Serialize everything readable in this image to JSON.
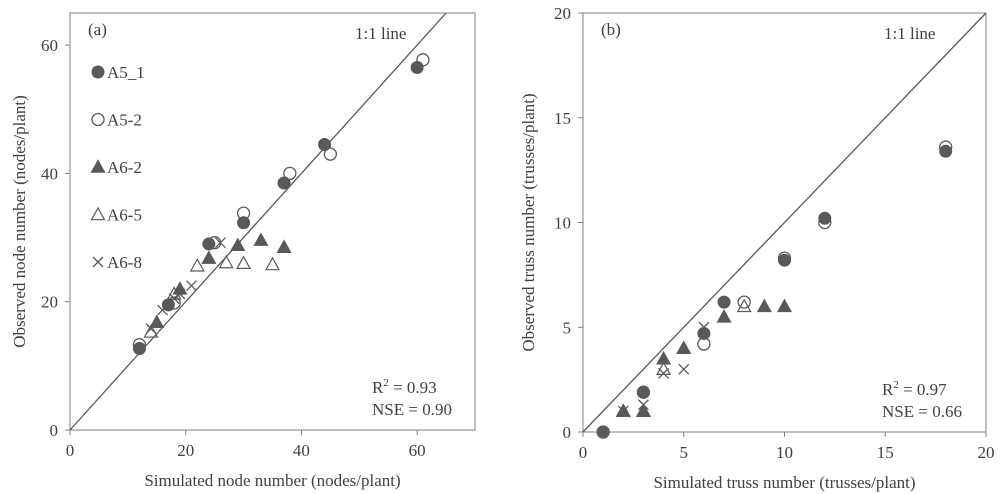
{
  "chart_data": [
    {
      "type": "scatter",
      "panel_label": "(a)",
      "xlabel": "Simulated node number (nodes/plant)",
      "ylabel": "Observed node number (nodes/plant)",
      "xlim": [
        0,
        70
      ],
      "ylim": [
        0,
        65
      ],
      "xticks": [
        "0",
        "20",
        "40",
        "60"
      ],
      "yticks": [
        "0",
        "20",
        "40",
        "60"
      ],
      "xtick_values": [
        0,
        20,
        40,
        60
      ],
      "ytick_values": [
        0,
        20,
        40,
        60
      ],
      "line_label": "1:1 line",
      "r2_prefix": "R",
      "r2_exp": "2",
      "r2_value": " = 0.93",
      "nse": "NSE = 0.90",
      "legend_position": "left",
      "series": [
        {
          "name": "A5_1",
          "marker": "filled-circle",
          "color": "#595959",
          "points": [
            [
              12,
              12.7
            ],
            [
              17,
              19.5
            ],
            [
              24,
              29
            ],
            [
              30,
              32.3
            ],
            [
              37,
              38.5
            ],
            [
              44,
              44.5
            ],
            [
              60,
              56.5
            ]
          ]
        },
        {
          "name": "A5-2",
          "marker": "open-circle",
          "color": "#595959",
          "points": [
            [
              12,
              13.3
            ],
            [
              18,
              19.8
            ],
            [
              25,
              29.2
            ],
            [
              30,
              33.8
            ],
            [
              38,
              40
            ],
            [
              45,
              43
            ],
            [
              61,
              57.7
            ]
          ]
        },
        {
          "name": "A6-2",
          "marker": "filled-triangle",
          "color": "#595959",
          "points": [
            [
              15,
              16.8
            ],
            [
              19,
              22
            ],
            [
              24,
              26.8
            ],
            [
              29,
              28.8
            ],
            [
              33,
              29.6
            ],
            [
              37,
              28.5
            ]
          ]
        },
        {
          "name": "A6-5",
          "marker": "open-triangle",
          "color": "#595959",
          "points": [
            [
              14,
              15.3
            ],
            [
              18,
              21.2
            ],
            [
              22,
              25.6
            ],
            [
              27,
              26.1
            ],
            [
              30,
              26
            ],
            [
              35,
              25.8
            ]
          ]
        },
        {
          "name": "A6-8",
          "marker": "cross",
          "color": "#595959",
          "points": [
            [
              14,
              15.8
            ],
            [
              16,
              18.7
            ],
            [
              18,
              20.5
            ],
            [
              19,
              21.2
            ],
            [
              21,
              22.5
            ],
            [
              26,
              29.2
            ]
          ]
        }
      ]
    },
    {
      "type": "scatter",
      "panel_label": "(b)",
      "xlabel": "Simulated truss number (trusses/plant)",
      "ylabel": "Observed truss number (trusses/plant)",
      "xlim": [
        0,
        20
      ],
      "ylim": [
        0,
        20
      ],
      "xticks": [
        "0",
        "5",
        "10",
        "15",
        "20"
      ],
      "yticks": [
        "0",
        "5",
        "10",
        "15",
        "20"
      ],
      "xtick_values": [
        0,
        5,
        10,
        15,
        20
      ],
      "ytick_values": [
        0,
        5,
        10,
        15,
        20
      ],
      "line_label": "1:1 line",
      "r2_prefix": "R",
      "r2_exp": "2",
      "r2_value": " = 0.97",
      "nse": "NSE = 0.66",
      "series": [
        {
          "name": "A5_1",
          "marker": "filled-circle",
          "color": "#595959",
          "points": [
            [
              1,
              0
            ],
            [
              3,
              1.9
            ],
            [
              6,
              4.7
            ],
            [
              7,
              6.2
            ],
            [
              10,
              8.2
            ],
            [
              12,
              10.2
            ],
            [
              18,
              13.4
            ]
          ]
        },
        {
          "name": "A5-2",
          "marker": "open-circle",
          "color": "#595959",
          "points": [
            [
              1,
              0
            ],
            [
              3,
              1.9
            ],
            [
              6,
              4.2
            ],
            [
              8,
              6.2
            ],
            [
              10,
              8.3
            ],
            [
              12,
              10
            ],
            [
              18,
              13.6
            ]
          ]
        },
        {
          "name": "A6-2",
          "marker": "filled-triangle",
          "color": "#595959",
          "points": [
            [
              2,
              1
            ],
            [
              3,
              1
            ],
            [
              4,
              3.5
            ],
            [
              5,
              4
            ],
            [
              7,
              5.5
            ],
            [
              9,
              6
            ],
            [
              10,
              6
            ]
          ]
        },
        {
          "name": "A6-5",
          "marker": "open-triangle",
          "color": "#595959",
          "points": [
            [
              2,
              1
            ],
            [
              3,
              1
            ],
            [
              4,
              3
            ],
            [
              5,
              4
            ],
            [
              8,
              6
            ]
          ]
        },
        {
          "name": "A6-8",
          "marker": "cross",
          "color": "#595959",
          "points": [
            [
              2,
              1
            ],
            [
              3,
              1.3
            ],
            [
              4,
              2.8
            ],
            [
              5,
              3
            ],
            [
              6,
              5
            ]
          ]
        }
      ]
    }
  ]
}
